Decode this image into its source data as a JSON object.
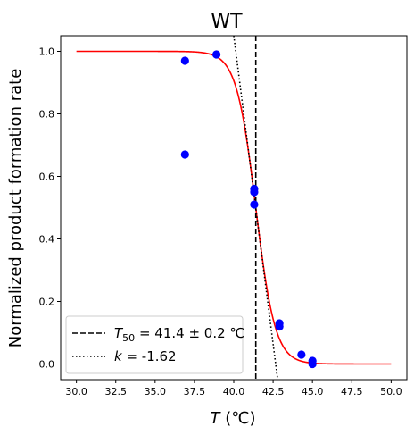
{
  "chart_data": {
    "type": "scatter",
    "title": "WT",
    "xlabel_var": "T",
    "xlabel_unit": " (℃)",
    "ylabel": "Normalized product formation rate",
    "xlim": [
      29.0,
      51.0
    ],
    "ylim": [
      -0.05,
      1.05
    ],
    "xticks": [
      30.0,
      32.5,
      35.0,
      37.5,
      40.0,
      42.5,
      45.0,
      47.5,
      50.0
    ],
    "yticks": [
      0.0,
      0.2,
      0.4,
      0.6,
      0.8,
      1.0
    ],
    "xtick_labels": [
      "30.0",
      "32.5",
      "35.0",
      "37.5",
      "40.0",
      "42.5",
      "45.0",
      "47.5",
      "50.0"
    ],
    "ytick_labels": [
      "0.0",
      "0.2",
      "0.4",
      "0.6",
      "0.8",
      "1.0"
    ],
    "grid": false,
    "legend_position": "lower-left",
    "points": [
      {
        "x": 36.9,
        "y": 0.97
      },
      {
        "x": 36.9,
        "y": 0.67
      },
      {
        "x": 38.9,
        "y": 0.99
      },
      {
        "x": 41.3,
        "y": 0.56
      },
      {
        "x": 41.3,
        "y": 0.55
      },
      {
        "x": 41.3,
        "y": 0.51
      },
      {
        "x": 42.9,
        "y": 0.13
      },
      {
        "x": 42.9,
        "y": 0.12
      },
      {
        "x": 44.3,
        "y": 0.03
      },
      {
        "x": 45.0,
        "y": 0.01
      },
      {
        "x": 45.0,
        "y": 0.0
      }
    ],
    "fit": {
      "name": "sigmoid-fit",
      "t50": 41.4,
      "k": -1.62,
      "top": 1.0,
      "bottom": 0.0
    },
    "t50_line": {
      "x": 41.4
    },
    "slope_line": {
      "x1": 40.0,
      "y1": 1.05,
      "x2": 42.79,
      "y2": -0.05
    },
    "legend": {
      "t50_main": "T",
      "t50_sub": "50",
      "t50_rest": " = 41.4 ± 0.2 ℃",
      "k_main": "k",
      "k_rest": " = -1.62"
    },
    "colors": {
      "points": "#0000ff",
      "fit": "#ff0000",
      "lines": "#000000"
    }
  }
}
